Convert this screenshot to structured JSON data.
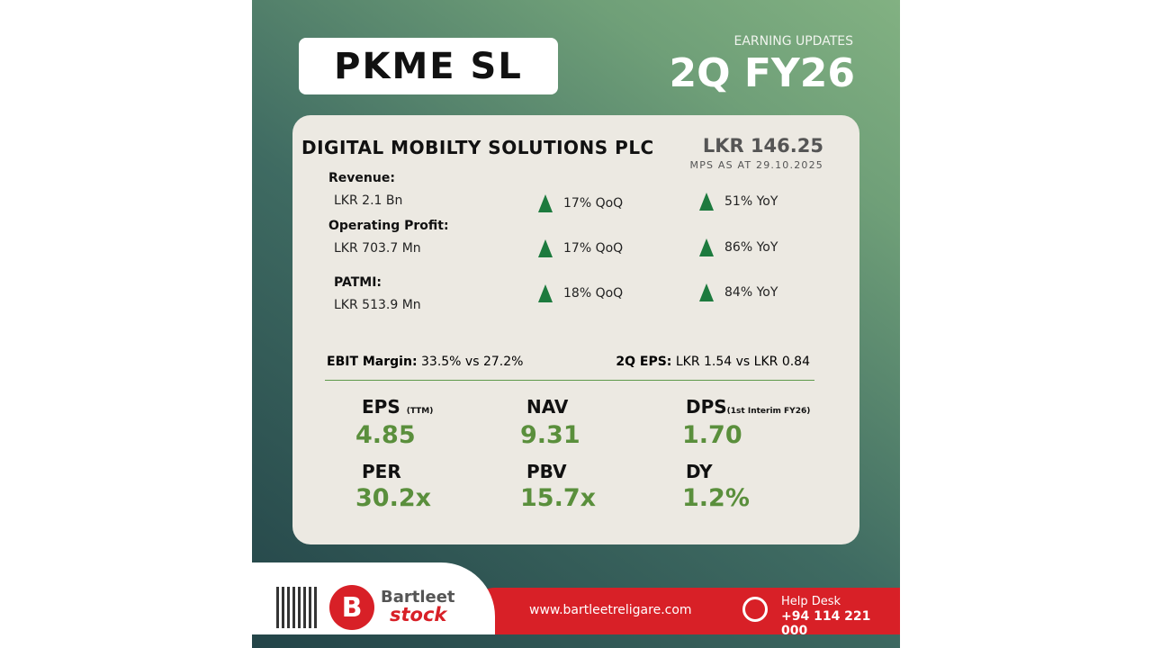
{
  "header": {
    "ticker": "PKME SL",
    "subtitle": "EARNING UPDATES",
    "quarter": "2Q FY26"
  },
  "company": {
    "name": "DIGITAL MOBILTY SOLUTIONS PLC",
    "price": "LKR 146.25",
    "price_note": "MPS AS AT 29.10.2025"
  },
  "metrics": [
    {
      "label": "Revenue:",
      "value": "LKR 2.1 Bn",
      "qoq": "17% QoQ",
      "yoy": "51% YoY"
    },
    {
      "label": "Operating Profit:",
      "value": "LKR 703.7 Mn",
      "qoq": "17% QoQ",
      "yoy": "86% YoY"
    },
    {
      "label": "PATMI:",
      "value": "LKR 513.9 Mn",
      "qoq": "18% QoQ",
      "yoy": "84% YoY"
    }
  ],
  "ebit": {
    "label": "EBIT Margin:",
    "value": "33.5% vs 27.2%"
  },
  "eps2q": {
    "label": "2Q EPS:",
    "value": "LKR 1.54 vs LKR 0.84"
  },
  "ratios": [
    {
      "label": "EPS",
      "note": "(TTM)",
      "value": "4.85"
    },
    {
      "label": "NAV",
      "note": "",
      "value": "9.31"
    },
    {
      "label": "DPS",
      "note": "(1st Interim FY26)",
      "value": "1.70"
    },
    {
      "label": "PER",
      "note": "",
      "value": "30.2x"
    },
    {
      "label": "PBV",
      "note": "",
      "value": "15.7x"
    },
    {
      "label": "DY",
      "note": "",
      "value": "1.2%"
    }
  ],
  "footer": {
    "brand_top": "Bartleet",
    "brand_bottom": "stock",
    "website": "www.bartleetreligare.com",
    "help_label": "Help Desk",
    "help_phone": "+94 114 221 000"
  },
  "colors": {
    "accent_green": "#5a8f3c",
    "arrow_green": "#1d7a3e",
    "brand_red": "#d82027"
  },
  "icons": [
    "up-arrow-icon",
    "qr-code-icon",
    "headset-icon",
    "bartleet-logo-icon"
  ]
}
